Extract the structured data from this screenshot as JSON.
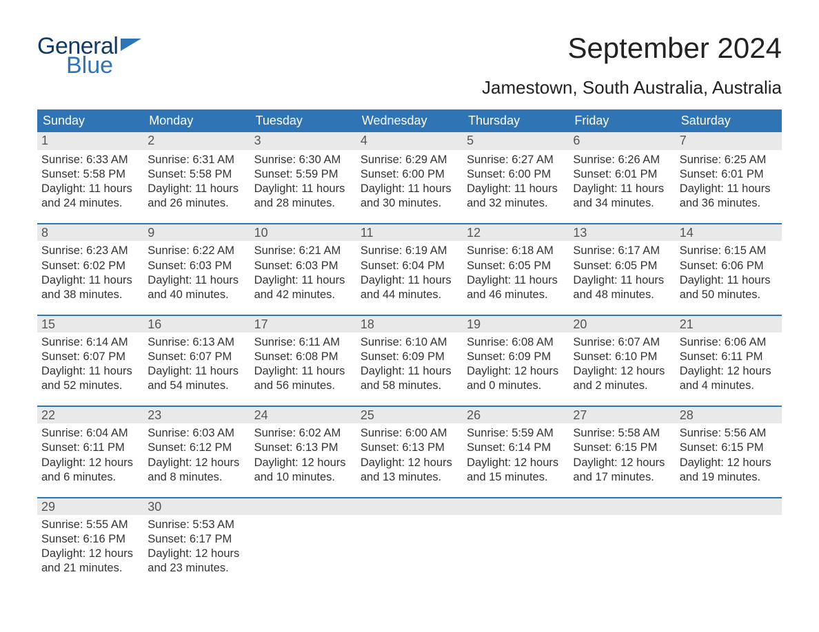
{
  "logo": {
    "word1": "General",
    "word2": "Blue"
  },
  "title": "September 2024",
  "location": "Jamestown, South Australia, Australia",
  "colors": {
    "header_blue": "#2f74b5",
    "daynum_bg": "#e9e9e9",
    "daynum_border": "#2f74b5",
    "text": "#333333"
  },
  "font_sizes": {
    "title": 42,
    "subtitle": 26,
    "dow": 18,
    "daynum": 18,
    "body": 16.5
  },
  "day_labels": [
    "Sunday",
    "Monday",
    "Tuesday",
    "Wednesday",
    "Thursday",
    "Friday",
    "Saturday"
  ],
  "weeks": [
    [
      {
        "n": "1",
        "sunrise": "Sunrise: 6:33 AM",
        "sunset": "Sunset: 5:58 PM",
        "daylight": "Daylight: 11 hours and 24 minutes."
      },
      {
        "n": "2",
        "sunrise": "Sunrise: 6:31 AM",
        "sunset": "Sunset: 5:58 PM",
        "daylight": "Daylight: 11 hours and 26 minutes."
      },
      {
        "n": "3",
        "sunrise": "Sunrise: 6:30 AM",
        "sunset": "Sunset: 5:59 PM",
        "daylight": "Daylight: 11 hours and 28 minutes."
      },
      {
        "n": "4",
        "sunrise": "Sunrise: 6:29 AM",
        "sunset": "Sunset: 6:00 PM",
        "daylight": "Daylight: 11 hours and 30 minutes."
      },
      {
        "n": "5",
        "sunrise": "Sunrise: 6:27 AM",
        "sunset": "Sunset: 6:00 PM",
        "daylight": "Daylight: 11 hours and 32 minutes."
      },
      {
        "n": "6",
        "sunrise": "Sunrise: 6:26 AM",
        "sunset": "Sunset: 6:01 PM",
        "daylight": "Daylight: 11 hours and 34 minutes."
      },
      {
        "n": "7",
        "sunrise": "Sunrise: 6:25 AM",
        "sunset": "Sunset: 6:01 PM",
        "daylight": "Daylight: 11 hours and 36 minutes."
      }
    ],
    [
      {
        "n": "8",
        "sunrise": "Sunrise: 6:23 AM",
        "sunset": "Sunset: 6:02 PM",
        "daylight": "Daylight: 11 hours and 38 minutes."
      },
      {
        "n": "9",
        "sunrise": "Sunrise: 6:22 AM",
        "sunset": "Sunset: 6:03 PM",
        "daylight": "Daylight: 11 hours and 40 minutes."
      },
      {
        "n": "10",
        "sunrise": "Sunrise: 6:21 AM",
        "sunset": "Sunset: 6:03 PM",
        "daylight": "Daylight: 11 hours and 42 minutes."
      },
      {
        "n": "11",
        "sunrise": "Sunrise: 6:19 AM",
        "sunset": "Sunset: 6:04 PM",
        "daylight": "Daylight: 11 hours and 44 minutes."
      },
      {
        "n": "12",
        "sunrise": "Sunrise: 6:18 AM",
        "sunset": "Sunset: 6:05 PM",
        "daylight": "Daylight: 11 hours and 46 minutes."
      },
      {
        "n": "13",
        "sunrise": "Sunrise: 6:17 AM",
        "sunset": "Sunset: 6:05 PM",
        "daylight": "Daylight: 11 hours and 48 minutes."
      },
      {
        "n": "14",
        "sunrise": "Sunrise: 6:15 AM",
        "sunset": "Sunset: 6:06 PM",
        "daylight": "Daylight: 11 hours and 50 minutes."
      }
    ],
    [
      {
        "n": "15",
        "sunrise": "Sunrise: 6:14 AM",
        "sunset": "Sunset: 6:07 PM",
        "daylight": "Daylight: 11 hours and 52 minutes."
      },
      {
        "n": "16",
        "sunrise": "Sunrise: 6:13 AM",
        "sunset": "Sunset: 6:07 PM",
        "daylight": "Daylight: 11 hours and 54 minutes."
      },
      {
        "n": "17",
        "sunrise": "Sunrise: 6:11 AM",
        "sunset": "Sunset: 6:08 PM",
        "daylight": "Daylight: 11 hours and 56 minutes."
      },
      {
        "n": "18",
        "sunrise": "Sunrise: 6:10 AM",
        "sunset": "Sunset: 6:09 PM",
        "daylight": "Daylight: 11 hours and 58 minutes."
      },
      {
        "n": "19",
        "sunrise": "Sunrise: 6:08 AM",
        "sunset": "Sunset: 6:09 PM",
        "daylight": "Daylight: 12 hours and 0 minutes."
      },
      {
        "n": "20",
        "sunrise": "Sunrise: 6:07 AM",
        "sunset": "Sunset: 6:10 PM",
        "daylight": "Daylight: 12 hours and 2 minutes."
      },
      {
        "n": "21",
        "sunrise": "Sunrise: 6:06 AM",
        "sunset": "Sunset: 6:11 PM",
        "daylight": "Daylight: 12 hours and 4 minutes."
      }
    ],
    [
      {
        "n": "22",
        "sunrise": "Sunrise: 6:04 AM",
        "sunset": "Sunset: 6:11 PM",
        "daylight": "Daylight: 12 hours and 6 minutes."
      },
      {
        "n": "23",
        "sunrise": "Sunrise: 6:03 AM",
        "sunset": "Sunset: 6:12 PM",
        "daylight": "Daylight: 12 hours and 8 minutes."
      },
      {
        "n": "24",
        "sunrise": "Sunrise: 6:02 AM",
        "sunset": "Sunset: 6:13 PM",
        "daylight": "Daylight: 12 hours and 10 minutes."
      },
      {
        "n": "25",
        "sunrise": "Sunrise: 6:00 AM",
        "sunset": "Sunset: 6:13 PM",
        "daylight": "Daylight: 12 hours and 13 minutes."
      },
      {
        "n": "26",
        "sunrise": "Sunrise: 5:59 AM",
        "sunset": "Sunset: 6:14 PM",
        "daylight": "Daylight: 12 hours and 15 minutes."
      },
      {
        "n": "27",
        "sunrise": "Sunrise: 5:58 AM",
        "sunset": "Sunset: 6:15 PM",
        "daylight": "Daylight: 12 hours and 17 minutes."
      },
      {
        "n": "28",
        "sunrise": "Sunrise: 5:56 AM",
        "sunset": "Sunset: 6:15 PM",
        "daylight": "Daylight: 12 hours and 19 minutes."
      }
    ],
    [
      {
        "n": "29",
        "sunrise": "Sunrise: 5:55 AM",
        "sunset": "Sunset: 6:16 PM",
        "daylight": "Daylight: 12 hours and 21 minutes."
      },
      {
        "n": "30",
        "sunrise": "Sunrise: 5:53 AM",
        "sunset": "Sunset: 6:17 PM",
        "daylight": "Daylight: 12 hours and 23 minutes."
      },
      {
        "empty": true
      },
      {
        "empty": true
      },
      {
        "empty": true
      },
      {
        "empty": true
      },
      {
        "empty": true
      }
    ]
  ]
}
